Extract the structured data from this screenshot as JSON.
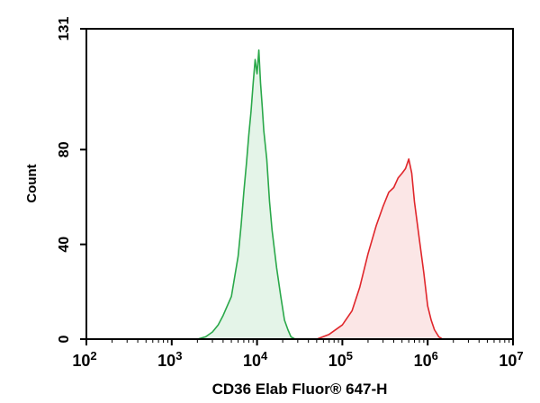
{
  "chart_data": {
    "type": "area",
    "title": "",
    "xlabel": "CD36 Elab Fluor® 647-H",
    "ylabel": "Count",
    "x_scale": "log",
    "xlim": [
      100,
      10000000
    ],
    "ylim": [
      0,
      131
    ],
    "x_ticks": [
      {
        "value": 100,
        "base": "10",
        "exp": "2"
      },
      {
        "value": 1000,
        "base": "10",
        "exp": "3"
      },
      {
        "value": 10000,
        "base": "10",
        "exp": "4"
      },
      {
        "value": 100000,
        "base": "10",
        "exp": "5"
      },
      {
        "value": 1000000,
        "base": "10",
        "exp": "6"
      },
      {
        "value": 10000000,
        "base": "10",
        "exp": "7"
      }
    ],
    "y_ticks": [
      {
        "value": 0,
        "label": "0"
      },
      {
        "value": 40,
        "label": "40"
      },
      {
        "value": 80,
        "label": "80"
      },
      {
        "value": 131,
        "label": "131"
      }
    ],
    "grid": false,
    "series": [
      {
        "color": "#2aa84a",
        "fill": "#e4f4e8",
        "x": [
          2000,
          2500,
          3000,
          3500,
          4000,
          5000,
          6000,
          6500,
          7000,
          7500,
          8000,
          8500,
          9000,
          9500,
          10000,
          10500,
          11000,
          11500,
          12000,
          13000,
          14000,
          15000,
          17000,
          19000,
          21000,
          23000,
          25000,
          28000
        ],
        "y": [
          0,
          1,
          3,
          6,
          10,
          18,
          35,
          48,
          62,
          74,
          86,
          96,
          108,
          118,
          112,
          122,
          108,
          98,
          88,
          76,
          58,
          46,
          30,
          18,
          8,
          4,
          1,
          0
        ]
      },
      {
        "color": "#e0262b",
        "fill": "#fbe6e6",
        "x": [
          50000,
          70000,
          100000,
          130000,
          160000,
          200000,
          250000,
          300000,
          350000,
          400000,
          450000,
          500000,
          550000,
          600000,
          650000,
          700000,
          800000,
          900000,
          1000000,
          1100000,
          1200000,
          1350000,
          1500000
        ],
        "y": [
          0,
          2,
          6,
          12,
          22,
          36,
          48,
          56,
          62,
          64,
          68,
          70,
          72,
          76,
          70,
          58,
          42,
          28,
          14,
          8,
          4,
          1,
          0
        ]
      }
    ]
  }
}
